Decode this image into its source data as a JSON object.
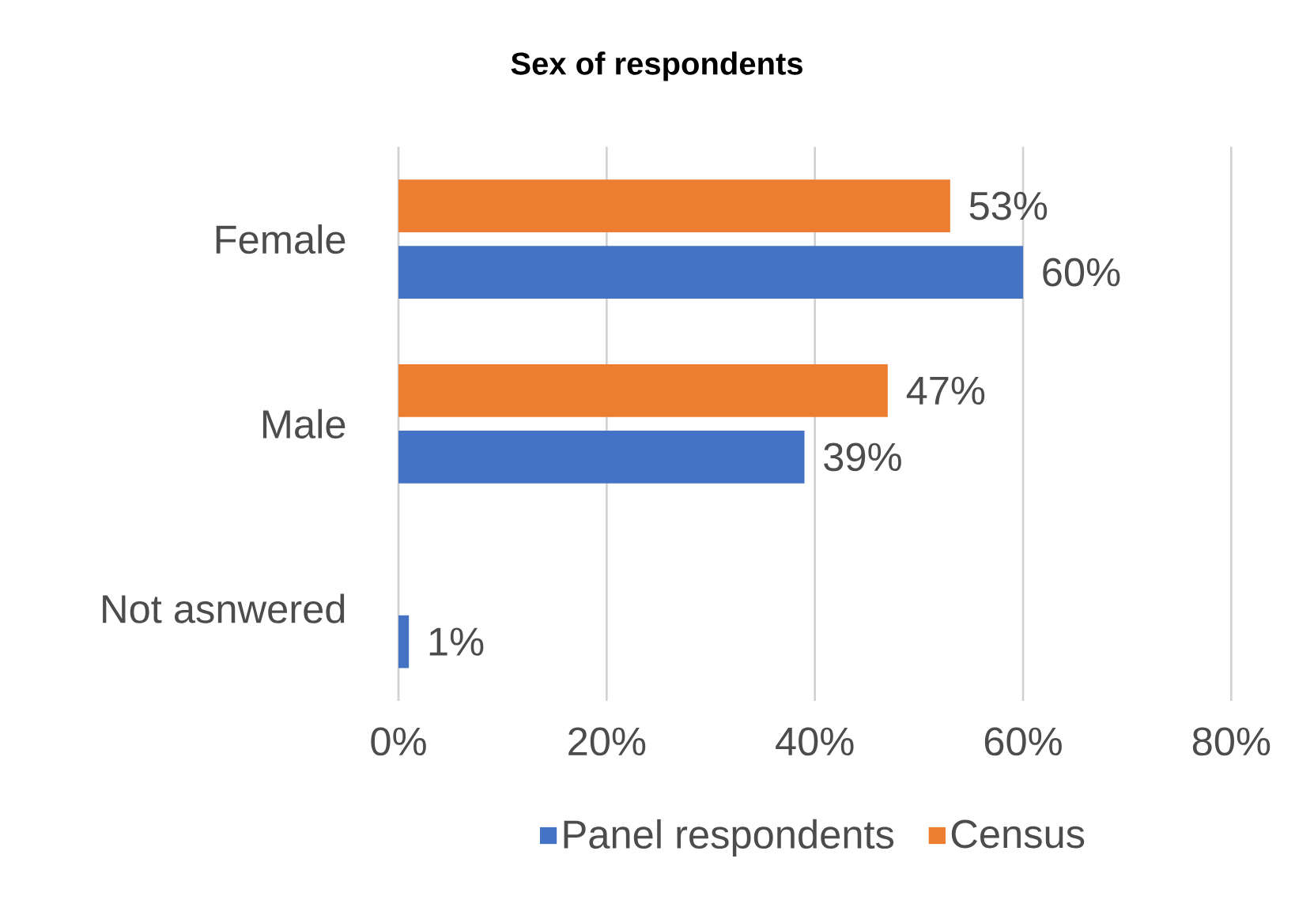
{
  "chart_data": {
    "type": "bar",
    "orientation": "horizontal",
    "title": "Sex of respondents",
    "categories": [
      "Female",
      "Male",
      "Not asnwered"
    ],
    "series": [
      {
        "name": "Panel respondents",
        "color": "#4472c4",
        "values": [
          60,
          39,
          1
        ],
        "value_labels": [
          "60%",
          "39%",
          "1%"
        ]
      },
      {
        "name": "Census",
        "color": "#ed7d31",
        "values": [
          53,
          47,
          null
        ],
        "value_labels": [
          "53%",
          "47%",
          null
        ]
      }
    ],
    "xlim": [
      0,
      80
    ],
    "xticks": [
      {
        "value": 0,
        "label": "0%"
      },
      {
        "value": 20,
        "label": "20%"
      },
      {
        "value": 40,
        "label": "40%"
      },
      {
        "value": 60,
        "label": "60%"
      },
      {
        "value": 80,
        "label": "80%"
      }
    ],
    "grid": "x",
    "legend": "bottom"
  }
}
